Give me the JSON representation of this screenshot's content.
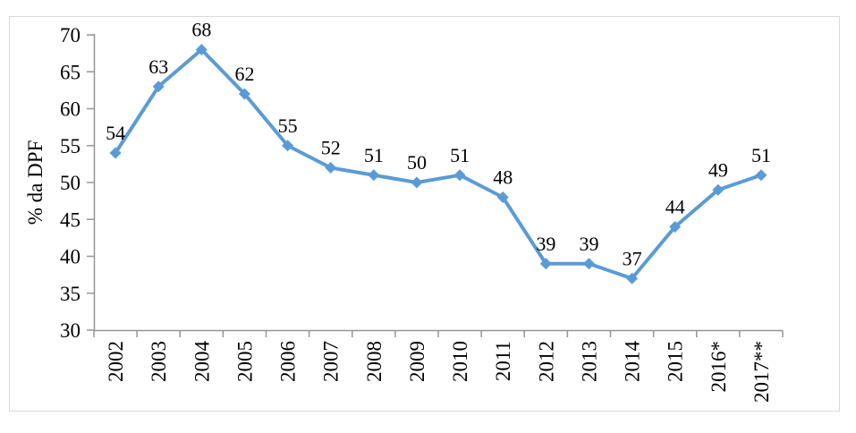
{
  "figure": {
    "background_color": "#ffffff",
    "frame_border_color": "#d9d9d9",
    "axis_color": "#969696",
    "text_color": "#000000"
  },
  "chart_data": {
    "type": "line",
    "title": "",
    "xlabel": "",
    "ylabel": "% da DPF",
    "categories": [
      "2002",
      "2003",
      "2004",
      "2005",
      "2006",
      "2007",
      "2008",
      "2009",
      "2010",
      "2011",
      "2012",
      "2013",
      "2014",
      "2015",
      "2016*",
      "2017**"
    ],
    "series": [
      {
        "name": "% da DPF",
        "values": [
          54,
          63,
          68,
          62,
          55,
          52,
          51,
          50,
          51,
          48,
          39,
          39,
          37,
          44,
          49,
          51
        ],
        "line_color": "#5b9bd5",
        "marker": "diamond",
        "data_labels": [
          54,
          63,
          68,
          62,
          55,
          52,
          51,
          50,
          51,
          48,
          39,
          39,
          37,
          44,
          49,
          51
        ]
      }
    ],
    "ylim": [
      30,
      70
    ],
    "ytick_step": 5,
    "ytick_labels": [
      "30",
      "35",
      "40",
      "45",
      "50",
      "55",
      "60",
      "65",
      "70"
    ],
    "xtick_rotation_deg": 90,
    "grid": false,
    "legend": false,
    "data_labels_position": "above"
  }
}
